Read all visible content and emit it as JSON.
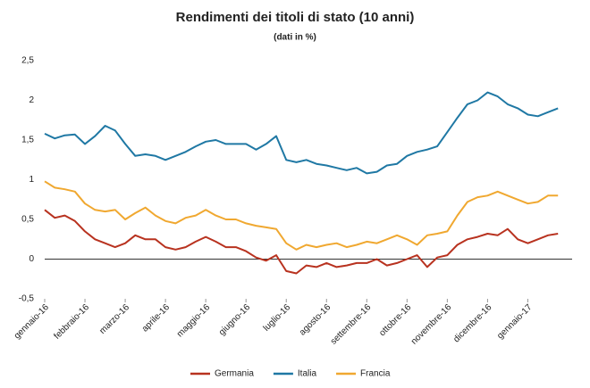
{
  "chart_data": {
    "type": "line",
    "title": "Rendimenti dei titoli di stato (10 anni)",
    "subtitle": "(dati in %)",
    "x": [
      0,
      0.25,
      0.5,
      0.75,
      1,
      1.25,
      1.5,
      1.75,
      2,
      2.25,
      2.5,
      2.75,
      3,
      3.25,
      3.5,
      3.75,
      4,
      4.25,
      4.5,
      4.75,
      5,
      5.25,
      5.5,
      5.75,
      6,
      6.25,
      6.5,
      6.75,
      7,
      7.25,
      7.5,
      7.75,
      8,
      8.25,
      8.5,
      8.75,
      9,
      9.25,
      9.5,
      9.75,
      10,
      10.25,
      10.5,
      10.75,
      11,
      11.25,
      11.5,
      11.75,
      12,
      12.25,
      12.5,
      12.75
    ],
    "xlim": [
      0,
      13.1
    ],
    "xticks": [
      {
        "value": 0,
        "label": "gennaio-16"
      },
      {
        "value": 1,
        "label": "febbraio-16"
      },
      {
        "value": 2,
        "label": "marzo-16"
      },
      {
        "value": 3,
        "label": "aprile-16"
      },
      {
        "value": 4,
        "label": "maggio-16"
      },
      {
        "value": 5,
        "label": "giugno-16"
      },
      {
        "value": 6,
        "label": "luglio-16"
      },
      {
        "value": 7,
        "label": "agosto-16"
      },
      {
        "value": 8,
        "label": "settembre-16"
      },
      {
        "value": 9,
        "label": "ottobre-16"
      },
      {
        "value": 10,
        "label": "novembre-16"
      },
      {
        "value": 11,
        "label": "dicembre-16"
      },
      {
        "value": 12,
        "label": "gennaio-17"
      }
    ],
    "ylim": [
      -0.5,
      2.5
    ],
    "yticks": [
      {
        "value": -0.5,
        "label": "-0,5"
      },
      0,
      {
        "value": 0.5,
        "label": "0,5"
      },
      1,
      {
        "value": 1.5,
        "label": "1,5"
      },
      2,
      {
        "value": 2.5,
        "label": "2,5"
      }
    ],
    "series": [
      {
        "name": "Germania",
        "color": "#b8321f",
        "values": [
          0.62,
          0.52,
          0.55,
          0.48,
          0.35,
          0.25,
          0.2,
          0.15,
          0.2,
          0.3,
          0.25,
          0.25,
          0.15,
          0.12,
          0.15,
          0.22,
          0.28,
          0.22,
          0.15,
          0.15,
          0.1,
          0.02,
          -0.02,
          0.05,
          -0.15,
          -0.18,
          -0.08,
          -0.1,
          -0.05,
          -0.1,
          -0.08,
          -0.05,
          -0.05,
          0,
          -0.08,
          -0.05,
          0,
          0.05,
          -0.1,
          0.02,
          0.05,
          0.18,
          0.25,
          0.28,
          0.32,
          0.3,
          0.38,
          0.25,
          0.2,
          0.25,
          0.3,
          0.32
        ]
      },
      {
        "name": "Italia",
        "color": "#1f78a4",
        "values": [
          1.58,
          1.52,
          1.56,
          1.57,
          1.45,
          1.55,
          1.68,
          1.62,
          1.45,
          1.3,
          1.32,
          1.3,
          1.25,
          1.3,
          1.35,
          1.42,
          1.48,
          1.5,
          1.45,
          1.45,
          1.45,
          1.38,
          1.45,
          1.55,
          1.25,
          1.22,
          1.25,
          1.2,
          1.18,
          1.15,
          1.12,
          1.15,
          1.08,
          1.1,
          1.18,
          1.2,
          1.3,
          1.35,
          1.38,
          1.42,
          1.6,
          1.78,
          1.95,
          2,
          2.1,
          2.05,
          1.95,
          1.9,
          1.82,
          1.8,
          1.85,
          1.9
        ]
      },
      {
        "name": "Francia",
        "color": "#f0a830",
        "values": [
          0.98,
          0.9,
          0.88,
          0.85,
          0.7,
          0.62,
          0.6,
          0.62,
          0.5,
          0.58,
          0.65,
          0.55,
          0.48,
          0.45,
          0.52,
          0.55,
          0.62,
          0.55,
          0.5,
          0.5,
          0.45,
          0.42,
          0.4,
          0.38,
          0.2,
          0.12,
          0.18,
          0.15,
          0.18,
          0.2,
          0.15,
          0.18,
          0.22,
          0.2,
          0.25,
          0.3,
          0.25,
          0.18,
          0.3,
          0.32,
          0.35,
          0.55,
          0.72,
          0.78,
          0.8,
          0.85,
          0.8,
          0.75,
          0.7,
          0.72,
          0.8,
          0.8
        ]
      }
    ]
  }
}
